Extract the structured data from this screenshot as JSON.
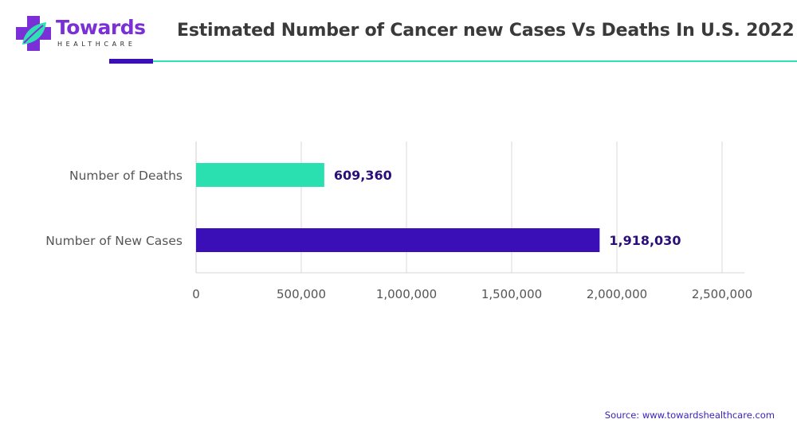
{
  "brand": {
    "name": "Towards",
    "tagline": "HEALTHCARE",
    "colors": {
      "purple": "#7b2fd6",
      "teal": "#2fe0b5",
      "indigo": "#3b0fb8"
    }
  },
  "source": "Source: www.towardshealthcare.com",
  "chart_data": {
    "type": "bar",
    "orientation": "horizontal",
    "title": "Estimated Number of Cancer new Cases Vs Deaths In U.S.  2022",
    "xlabel": "",
    "ylabel": "",
    "categories": [
      "Number of Deaths",
      "Number of New Cases"
    ],
    "values": [
      609360,
      1918030
    ],
    "value_labels": [
      "609,360",
      "1,918,030"
    ],
    "colors": [
      "#2ae0b0",
      "#3b0fb8"
    ],
    "xlim": [
      0,
      2500000
    ],
    "xticks": [
      0,
      500000,
      1000000,
      1500000,
      2000000,
      2500000
    ],
    "xtick_labels": [
      "0",
      "500,000",
      "1,000,000",
      "1,500,000",
      "2,000,000",
      "2,500,000"
    ],
    "grid": true,
    "legend": "none"
  }
}
